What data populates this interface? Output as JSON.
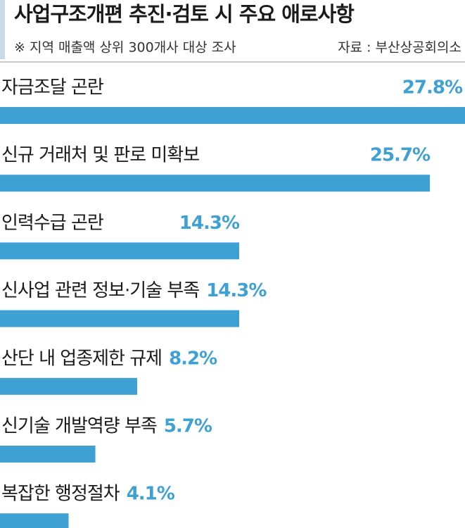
{
  "chart_data": {
    "type": "bar",
    "orientation": "horizontal",
    "title": "사업구조개편 추진·검토 시 주요 애로사항",
    "note": "※ 지역 매출액 상위 300개사 대상 조사",
    "source": "자료 : 부산상공회의소",
    "categories": [
      "자금조달 곤란",
      "신규 거래처 및 판로 미확보",
      "인력수급 곤란",
      "신사업 관련 정보·기술 부족",
      "산단 내 업종제한 규제",
      "신기술 개발역량 부족",
      "복잡한 행정절차"
    ],
    "values": [
      27.8,
      25.7,
      14.3,
      14.3,
      8.2,
      5.7,
      4.1
    ],
    "value_labels": [
      "27.8%",
      "25.7%",
      "14.3%",
      "14.3%",
      "8.2%",
      "5.7%",
      "4.1%"
    ],
    "color": "#3fa1d3"
  }
}
